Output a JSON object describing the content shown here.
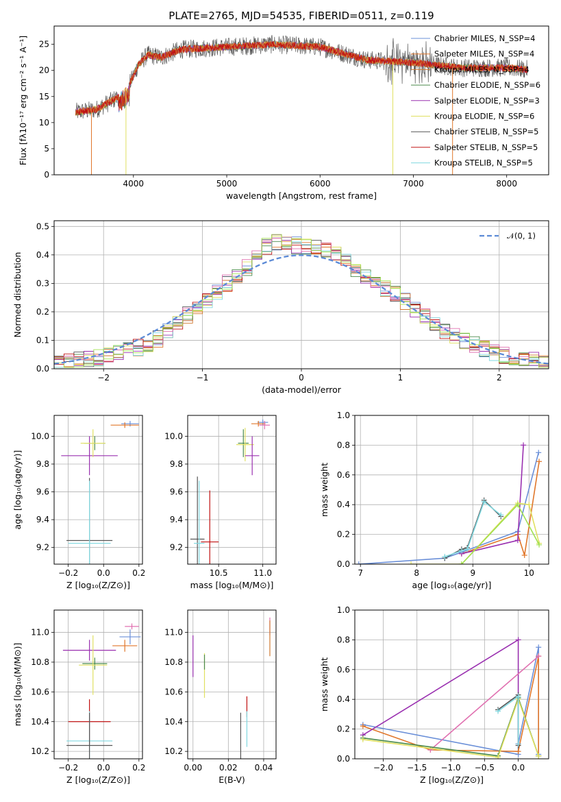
{
  "colors": [
    "#6a8fd8",
    "#e0762a",
    "#d07a32",
    "#4a8a4a",
    "#9a30b0",
    "#e0e060",
    "#555555",
    "#c01010",
    "#80d8e0",
    "#e070b0",
    "#a0e050"
  ],
  "chart_data": [
    {
      "id": "spectrum",
      "type": "line",
      "title": "PLATE=2765, MJD=54535, FIBERID=0511, z=0.119",
      "xlabel": "wavelength [Angstrom, rest frame]",
      "ylabel": "Flux [fλ10⁻¹⁷ erg cm⁻² s⁻¹ A⁻¹]",
      "xlim": [
        3150,
        8450
      ],
      "ylim": [
        0,
        28.5
      ],
      "xticks": [
        4000,
        5000,
        6000,
        7000,
        8000
      ],
      "yticks": [
        0,
        5,
        10,
        15,
        20,
        25
      ],
      "grid": false,
      "legend": "top-right",
      "series": [
        {
          "name": "Chabrier MILES, N_SSP=4"
        },
        {
          "name": "Salpeter MILES, N_SSP=4"
        },
        {
          "name": "Kroupa MILES, N_SSP=4"
        },
        {
          "name": "Chabrier ELODIE, N_SSP=6"
        },
        {
          "name": "Salpeter ELODIE, N_SSP=3"
        },
        {
          "name": "Kroupa ELODIE, N_SSP=6"
        },
        {
          "name": "Chabrier STELIB, N_SSP=5"
        },
        {
          "name": "Salpeter STELIB, N_SSP=5"
        },
        {
          "name": "Kroupa STELIB, N_SSP=5"
        }
      ],
      "continuum": [
        [
          3380,
          12
        ],
        [
          3600,
          12.5
        ],
        [
          3850,
          15
        ],
        [
          3950,
          17
        ],
        [
          4050,
          21
        ],
        [
          4150,
          23
        ],
        [
          4300,
          22.5
        ],
        [
          4500,
          24
        ],
        [
          5000,
          24.5
        ],
        [
          5500,
          25
        ],
        [
          6000,
          24.5
        ],
        [
          6300,
          23
        ],
        [
          6500,
          22
        ],
        [
          7000,
          21.5
        ],
        [
          7500,
          20.5
        ],
        [
          8000,
          20.5
        ],
        [
          8220,
          20.2
        ]
      ]
    },
    {
      "id": "residuals",
      "type": "step",
      "xlabel": "(data-model)/error",
      "ylabel": "Normed distribution",
      "xlim": [
        -2.5,
        2.5
      ],
      "ylim": [
        0,
        0.52
      ],
      "xticks": [
        -2,
        -1,
        0,
        1,
        2
      ],
      "yticks": [
        0.0,
        0.1,
        0.2,
        0.3,
        0.4,
        0.5
      ],
      "grid": true,
      "legend": "top-right",
      "gaussian_label": "𝒩(0, 1)",
      "bin_width": 0.1,
      "hist_envelope": [
        [
          -2.5,
          0.02
        ],
        [
          -2.0,
          0.04
        ],
        [
          -1.5,
          0.09
        ],
        [
          -1.0,
          0.23
        ],
        [
          -0.5,
          0.37
        ],
        [
          -0.3,
          0.45
        ],
        [
          0,
          0.43
        ],
        [
          0.3,
          0.42
        ],
        [
          0.5,
          0.36
        ],
        [
          1.0,
          0.25
        ],
        [
          1.5,
          0.12
        ],
        [
          2.0,
          0.05
        ],
        [
          2.5,
          0.02
        ]
      ]
    },
    {
      "id": "age-vs-Z",
      "type": "errorbar",
      "xlabel": "Z [log₁₀(Z/Z⊙)]",
      "ylabel": "age  [log₁₀(age/yr)]",
      "xlim": [
        -0.28,
        0.22
      ],
      "ylim": [
        9.08,
        10.15
      ],
      "xticks": [
        -0.2,
        0.0,
        0.2
      ],
      "yticks": [
        9.2,
        9.4,
        9.6,
        9.8,
        10.0
      ],
      "grid": true,
      "points": [
        {
          "c": 0,
          "x": 0.15,
          "y": 10.09,
          "xe": 0.05,
          "ye": 0.02
        },
        {
          "c": 1,
          "x": 0.12,
          "y": 10.08,
          "xe": 0.08,
          "ye": 0.02
        },
        {
          "c": 3,
          "x": -0.05,
          "y": 9.95,
          "xe": 0.06,
          "ye": 0.05
        },
        {
          "c": 4,
          "x": -0.08,
          "y": 9.86,
          "xe": 0.16,
          "ye": 0.14
        },
        {
          "c": 5,
          "x": -0.06,
          "y": 9.95,
          "xe": 0.07,
          "ye": 0.1
        },
        {
          "c": 6,
          "x": -0.08,
          "y": 9.25,
          "xe": 0.13,
          "ye": 0.45
        },
        {
          "c": 8,
          "x": -0.08,
          "y": 9.23,
          "xe": 0.12,
          "ye": 0.45
        }
      ]
    },
    {
      "id": "age-vs-mass",
      "type": "errorbar",
      "xlabel": "mass [log₁₀(M/M⊙)]",
      "ylabel": "",
      "xlim": [
        10.15,
        11.15
      ],
      "ylim": [
        9.08,
        10.15
      ],
      "xticks": [
        10.5,
        11.0
      ],
      "yticks": [
        9.2,
        9.4,
        9.6,
        9.8,
        10.0
      ],
      "grid": true,
      "points": [
        {
          "c": 0,
          "x": 11.0,
          "y": 10.1,
          "xe": 0.06,
          "ye": 0.02
        },
        {
          "c": 1,
          "x": 10.95,
          "y": 10.09,
          "xe": 0.08,
          "ye": 0.02
        },
        {
          "c": 9,
          "x": 11.02,
          "y": 10.08,
          "xe": 0.06,
          "ye": 0.03
        },
        {
          "c": 3,
          "x": 10.78,
          "y": 9.95,
          "xe": 0.06,
          "ye": 0.1
        },
        {
          "c": 5,
          "x": 10.8,
          "y": 9.94,
          "xe": 0.1,
          "ye": 0.12
        },
        {
          "c": 4,
          "x": 10.88,
          "y": 9.86,
          "xe": 0.08,
          "ye": 0.14
        },
        {
          "c": 6,
          "x": 10.26,
          "y": 9.26,
          "xe": 0.08,
          "ye": 0.45
        },
        {
          "c": 8,
          "x": 10.28,
          "y": 9.23,
          "xe": 0.06,
          "ye": 0.45
        },
        {
          "c": 7,
          "x": 10.4,
          "y": 9.24,
          "xe": 0.1,
          "ye": 0.37
        }
      ]
    },
    {
      "id": "mass-weight-vs-age",
      "type": "line",
      "xlabel": "age  [log₁₀(age/yr)]",
      "ylabel": "mass weight",
      "xlim": [
        6.9,
        10.35
      ],
      "ylim": [
        0,
        1.0
      ],
      "xticks": [
        7,
        8,
        9,
        10
      ],
      "yticks": [
        0.0,
        0.2,
        0.4,
        0.6,
        0.8,
        1.0
      ],
      "grid": true,
      "lines": [
        {
          "c": 0,
          "pts": [
            [
              6.97,
              0.0
            ],
            [
              8.5,
              0.04
            ],
            [
              8.8,
              0.08
            ],
            [
              9.8,
              0.22
            ],
            [
              10.17,
              0.75
            ]
          ]
        },
        {
          "c": 1,
          "pts": [
            [
              8.8,
              0.07
            ],
            [
              9.8,
              0.2
            ],
            [
              9.92,
              0.06
            ],
            [
              10.18,
              0.69
            ]
          ]
        },
        {
          "c": 4,
          "pts": [
            [
              8.8,
              0.07
            ],
            [
              9.8,
              0.16
            ],
            [
              9.9,
              0.8
            ]
          ]
        },
        {
          "c": 5,
          "pts": [
            [
              7.9,
              0.0
            ],
            [
              8.8,
              0.0
            ],
            [
              9.8,
              0.41
            ],
            [
              10.0,
              0.4
            ],
            [
              10.18,
              0.14
            ]
          ]
        },
        {
          "c": 10,
          "pts": [
            [
              8.8,
              0.0
            ],
            [
              9.8,
              0.4
            ],
            [
              10.18,
              0.13
            ]
          ]
        },
        {
          "c": 6,
          "pts": [
            [
              8.5,
              0.04
            ],
            [
              8.8,
              0.1
            ],
            [
              8.9,
              0.11
            ],
            [
              9.2,
              0.43
            ],
            [
              9.5,
              0.32
            ]
          ]
        },
        {
          "c": 8,
          "pts": [
            [
              8.5,
              0.05
            ],
            [
              8.8,
              0.09
            ],
            [
              8.9,
              0.1
            ],
            [
              9.2,
              0.42
            ],
            [
              9.5,
              0.33
            ]
          ]
        }
      ]
    },
    {
      "id": "mass-vs-Z",
      "type": "errorbar",
      "xlabel": "Z [log₁₀(Z/Z⊙)]",
      "ylabel": "mass [log₁₀(M/M⊙)]",
      "xlim": [
        -0.28,
        0.22
      ],
      "ylim": [
        10.15,
        11.15
      ],
      "xticks": [
        -0.2,
        0.0,
        0.2
      ],
      "yticks": [
        10.2,
        10.4,
        10.6,
        10.8,
        11.0
      ],
      "grid": true,
      "points": [
        {
          "c": 9,
          "x": 0.16,
          "y": 11.04,
          "xe": 0.04,
          "ye": 0.02
        },
        {
          "c": 0,
          "x": 0.15,
          "y": 10.97,
          "xe": 0.06,
          "ye": 0.05
        },
        {
          "c": 1,
          "x": 0.12,
          "y": 10.91,
          "xe": 0.07,
          "ye": 0.04
        },
        {
          "c": 4,
          "x": -0.08,
          "y": 10.88,
          "xe": 0.15,
          "ye": 0.07
        },
        {
          "c": 3,
          "x": -0.05,
          "y": 10.79,
          "xe": 0.07,
          "ye": 0.04
        },
        {
          "c": 5,
          "x": -0.06,
          "y": 10.78,
          "xe": 0.08,
          "ye": 0.2
        },
        {
          "c": 7,
          "x": -0.08,
          "y": 10.4,
          "xe": 0.12,
          "ye": 0.15
        },
        {
          "c": 8,
          "x": -0.08,
          "y": 10.27,
          "xe": 0.13,
          "ye": 0.2
        },
        {
          "c": 6,
          "x": -0.08,
          "y": 10.24,
          "xe": 0.13,
          "ye": 0.22
        }
      ]
    },
    {
      "id": "mass-vs-ebv",
      "type": "errorbar",
      "xlabel": "E(B-V)",
      "ylabel": "",
      "xlim": [
        -0.003,
        0.047
      ],
      "ylim": [
        10.15,
        11.15
      ],
      "xticks": [
        0.0,
        0.02,
        0.04
      ],
      "yticks": [
        10.2,
        10.4,
        10.6,
        10.8,
        11.0
      ],
      "grid": true,
      "points": [
        {
          "c": 9,
          "x": 0.0435,
          "y": 11.04,
          "xe": 0,
          "ye": 0.06
        },
        {
          "c": 2,
          "x": 0.0435,
          "y": 10.96,
          "xe": 0,
          "ye": 0.12
        },
        {
          "c": 4,
          "x": 0.0,
          "y": 10.84,
          "xe": 0,
          "ye": 0.14
        },
        {
          "c": 5,
          "x": 0.0065,
          "y": 10.71,
          "xe": 0,
          "ye": 0.15
        },
        {
          "c": 3,
          "x": 0.0065,
          "y": 10.8,
          "xe": 0,
          "ye": 0.05
        },
        {
          "c": 7,
          "x": 0.0305,
          "y": 10.5,
          "xe": 0,
          "ye": 0.07
        },
        {
          "c": 6,
          "x": 0.027,
          "y": 10.29,
          "xe": 0,
          "ye": 0.17
        },
        {
          "c": 8,
          "x": 0.0305,
          "y": 10.35,
          "xe": 0,
          "ye": 0.12
        }
      ]
    },
    {
      "id": "mass-weight-vs-Z",
      "type": "line",
      "xlabel": "Z [log₁₀(Z/Z⊙)]",
      "ylabel": "mass weight",
      "xlim": [
        -2.42,
        0.45
      ],
      "ylim": [
        0,
        1.0
      ],
      "xticks": [
        -2.0,
        -1.5,
        -1.0,
        -0.5,
        0.0
      ],
      "yticks": [
        0.0,
        0.2,
        0.4,
        0.6,
        0.8,
        1.0
      ],
      "grid": true,
      "lines": [
        {
          "c": 0,
          "pts": [
            [
              -2.3,
              0.23
            ],
            [
              0.0,
              0.03
            ],
            [
              0.0,
              0.1
            ],
            [
              0.3,
              0.75
            ],
            [
              0.3,
              0.03
            ]
          ]
        },
        {
          "c": 1,
          "pts": [
            [
              -2.3,
              0.22
            ],
            [
              -1.3,
              0.06
            ],
            [
              0.0,
              0.05
            ],
            [
              0.3,
              0.69
            ],
            [
              0.3,
              0.02
            ]
          ]
        },
        {
          "c": 4,
          "pts": [
            [
              -2.3,
              0.16
            ],
            [
              0.0,
              0.8
            ],
            [
              0.0,
              0.1
            ]
          ]
        },
        {
          "c": 9,
          "pts": [
            [
              -1.3,
              0.06
            ],
            [
              0.3,
              0.69
            ]
          ]
        },
        {
          "c": 3,
          "pts": [
            [
              -2.3,
              0.14
            ],
            [
              -0.3,
              0.02
            ],
            [
              0.0,
              0.41
            ],
            [
              0.3,
              0.02
            ]
          ]
        },
        {
          "c": 5,
          "pts": [
            [
              -2.3,
              0.13
            ],
            [
              -0.3,
              0.01
            ],
            [
              0.0,
              0.4
            ],
            [
              0.3,
              0.02
            ]
          ]
        },
        {
          "c": 6,
          "pts": [
            [
              -0.3,
              0.33
            ],
            [
              0.0,
              0.43
            ],
            [
              0.0,
              0.09
            ]
          ]
        },
        {
          "c": 8,
          "pts": [
            [
              -0.3,
              0.32
            ],
            [
              0.0,
              0.42
            ],
            [
              0.0,
              0.1
            ]
          ]
        }
      ]
    }
  ]
}
